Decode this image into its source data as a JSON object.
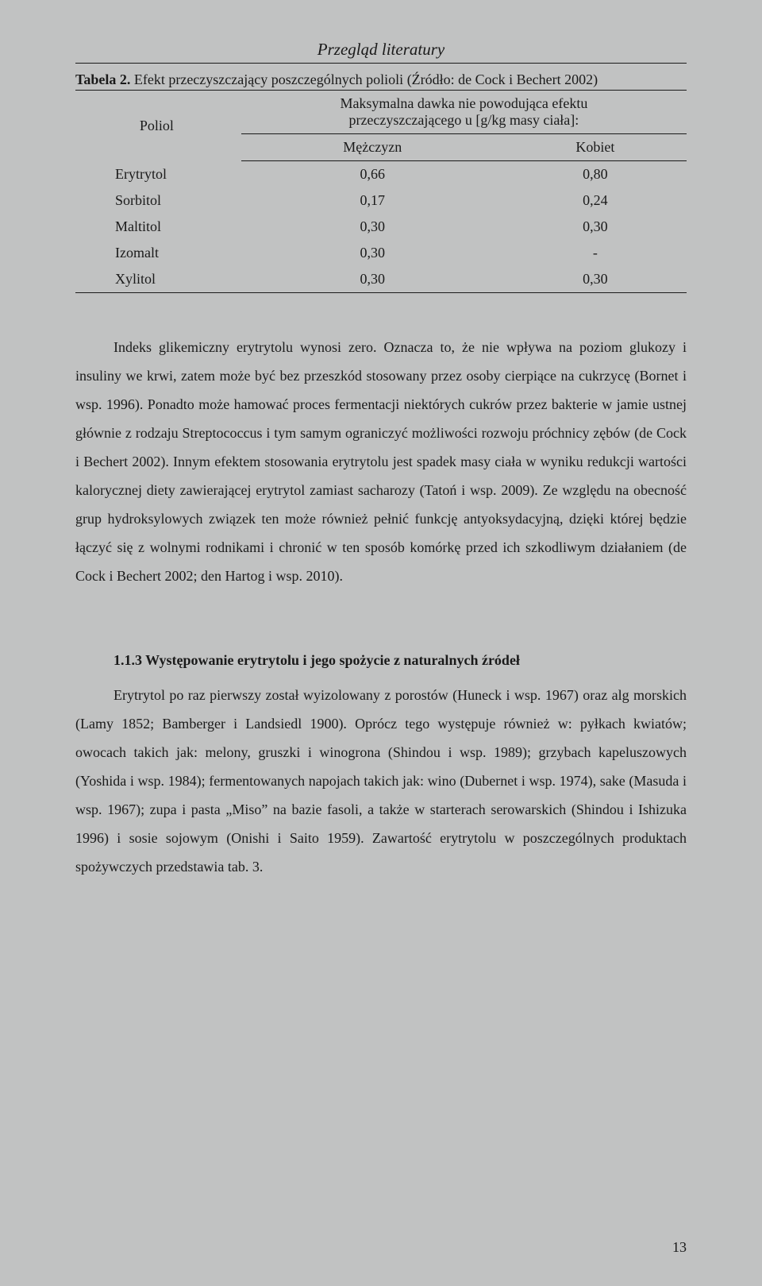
{
  "header": {
    "running_title": "Przegląd literatury"
  },
  "table": {
    "caption_label": "Tabela 2.",
    "caption_text": " Efekt przeczyszczający poszczególnych polioli (Źródło: de Cock i Bechert 2002)",
    "col_poliol": "Poliol",
    "col_desc_line1": "Maksymalna dawka nie powodująca efektu",
    "col_desc_line2": "przeczyszczającego u [g/kg masy ciała]:",
    "sub_m": "Mężczyzn",
    "sub_k": "Kobiet",
    "rows": [
      {
        "name": "Erytrytol",
        "m": "0,66",
        "k": "0,80"
      },
      {
        "name": "Sorbitol",
        "m": "0,17",
        "k": "0,24"
      },
      {
        "name": "Maltitol",
        "m": "0,30",
        "k": "0,30"
      },
      {
        "name": "Izomalt",
        "m": "0,30",
        "k": "-"
      },
      {
        "name": "Xylitol",
        "m": "0,30",
        "k": "0,30"
      }
    ]
  },
  "paragraphs": {
    "p1": "Indeks glikemiczny erytrytolu wynosi zero. Oznacza to, że nie wpływa na poziom glukozy i insuliny we krwi, zatem może być bez przeszkód stosowany przez osoby cierpiące na cukrzycę (Bornet i wsp. 1996). Ponadto może hamować proces fermentacji niektórych cukrów przez bakterie w jamie ustnej głównie z rodzaju Streptococcus i tym samym ograniczyć możliwości rozwoju próchnicy zębów (de Cock i Bechert 2002). Innym efektem stosowania erytrytolu jest spadek masy ciała w wyniku redukcji wartości kalorycznej diety zawierającej erytrytol zamiast sacharozy (Tatoń i wsp. 2009). Ze względu na obecność grup hydroksylowych związek ten może również pełnić funkcję antyoksydacyjną, dzięki której będzie łączyć się z wolnymi rodnikami i chronić w ten sposób komórkę przed ich szkodliwym działaniem (de Cock i Bechert 2002; den Hartog i wsp. 2010).",
    "section_title": "1.1.3 Występowanie erytrytolu i jego spożycie z naturalnych źródeł",
    "p2": "Erytrytol po raz pierwszy został wyizolowany z porostów (Huneck i wsp. 1967) oraz alg morskich (Lamy 1852; Bamberger i Landsiedl 1900). Oprócz tego występuje również w: pyłkach kwiatów; owocach takich jak: melony, gruszki i winogrona (Shindou i wsp. 1989); grzybach kapeluszowych (Yoshida i wsp. 1984); fermentowanych napojach takich jak: wino (Dubernet i wsp. 1974), sake (Masuda i wsp. 1967); zupa i pasta „Miso” na bazie fasoli, a także w starterach serowarskich (Shindou i Ishizuka 1996) i sosie sojowym (Onishi i Saito 1959). Zawartość erytrytolu w poszczególnych produktach spożywczych przedstawia tab. 3."
  },
  "page_number": "13"
}
